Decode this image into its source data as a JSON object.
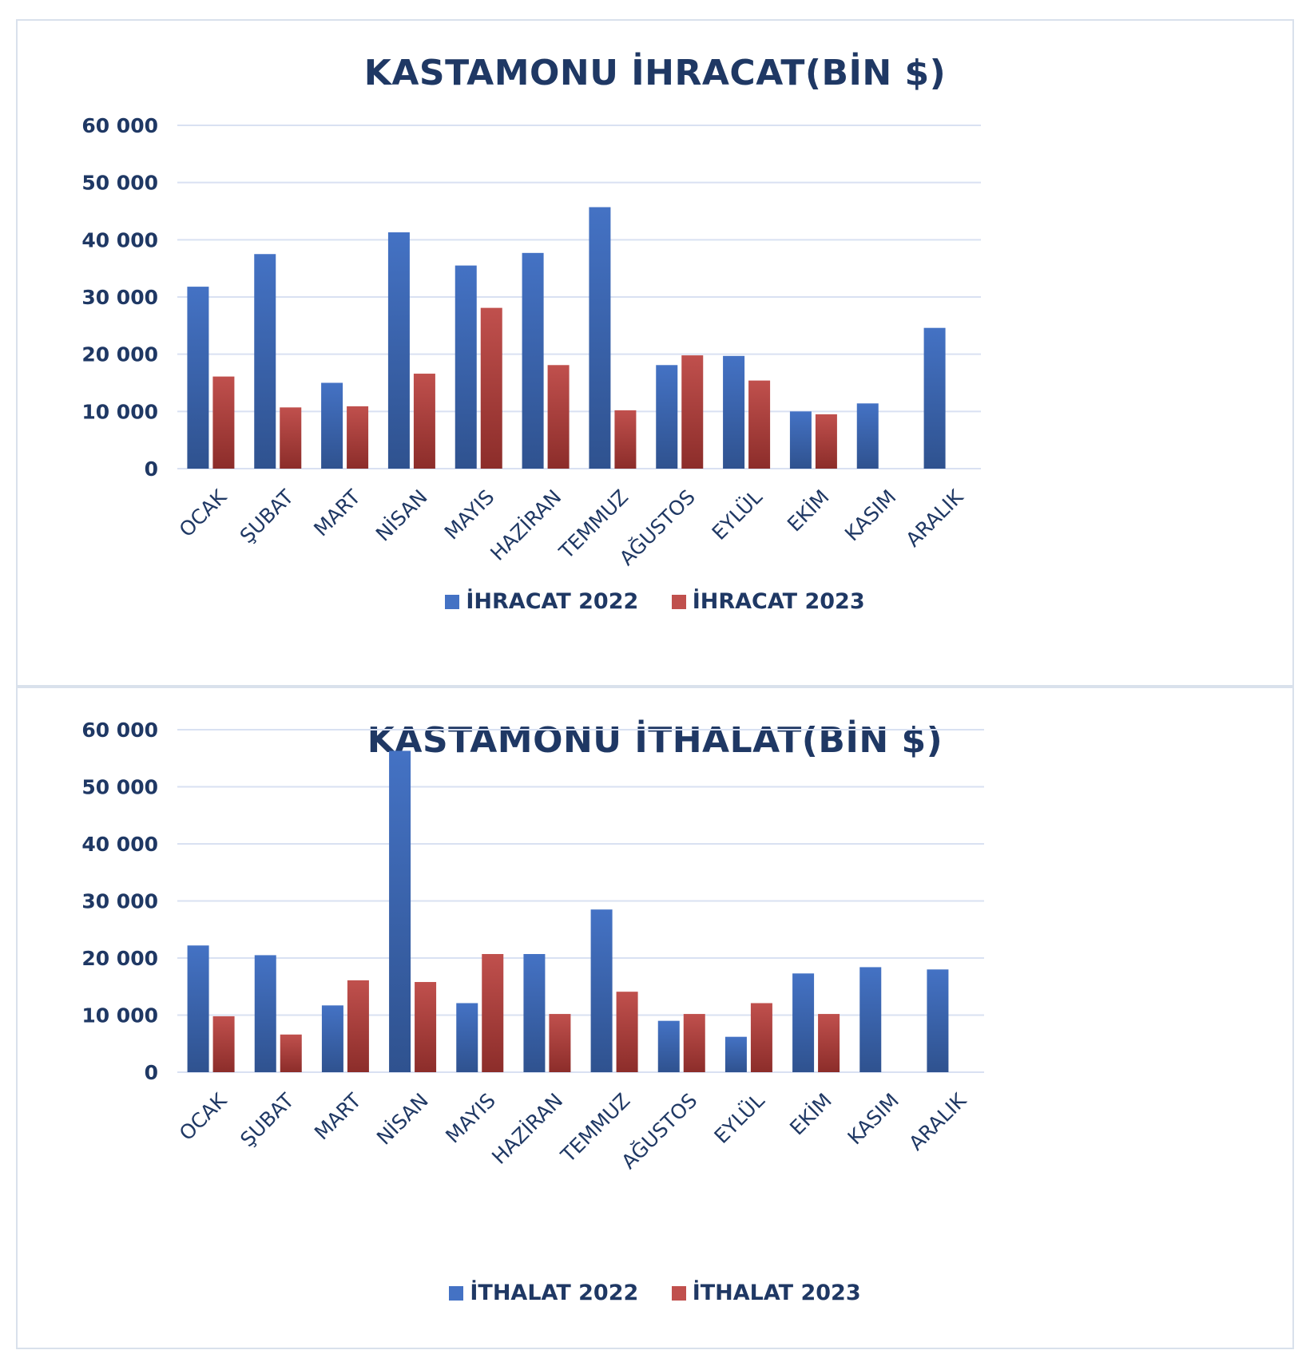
{
  "colors": {
    "series_2022": "#4472c4",
    "series_2023": "#c0504d",
    "gridline": "#d9e1f2",
    "text": "#1f3864"
  },
  "chart_data": [
    {
      "type": "bar",
      "title": "KASTAMONU İHRACAT(BİN $)",
      "categories": [
        "OCAK",
        "ŞUBAT",
        "MART",
        "NİSAN",
        "MAYIS",
        "HAZİRAN",
        "TEMMUZ",
        "AĞUSTOS",
        "EYLÜL",
        "EKİM",
        "KASIM",
        "ARALIK"
      ],
      "series": [
        {
          "name": "İHRACAT 2022",
          "values": [
            31800,
            37500,
            15000,
            41300,
            35500,
            37700,
            45700,
            18100,
            19700,
            10000,
            11400,
            24600
          ]
        },
        {
          "name": "İHRACAT 2023",
          "values": [
            16100,
            10700,
            10900,
            16600,
            28100,
            18100,
            10200,
            19800,
            15400,
            9500,
            null,
            null
          ]
        }
      ],
      "yticks": [
        "60 000",
        "50 000",
        "40 000",
        "30 000",
        "20 000",
        "10 000",
        "0"
      ],
      "ylim": [
        0,
        60000
      ],
      "grid": true,
      "legend": "bottom",
      "xlabel": "",
      "ylabel": ""
    },
    {
      "type": "bar",
      "title": "KASTAMONU İTHALAT(BİN $)",
      "categories": [
        "OCAK",
        "ŞUBAT",
        "MART",
        "NİSAN",
        "MAYIS",
        "HAZİRAN",
        "TEMMUZ",
        "AĞUSTOS",
        "EYLÜL",
        "EKİM",
        "KASIM",
        "ARALIK"
      ],
      "series": [
        {
          "name": "İTHALAT 2022",
          "values": [
            22200,
            20500,
            11700,
            56300,
            12100,
            20700,
            28500,
            9000,
            6200,
            17300,
            18400,
            18000
          ]
        },
        {
          "name": "İTHALAT 2023",
          "values": [
            9800,
            6600,
            16100,
            15800,
            20700,
            10200,
            14100,
            10200,
            12100,
            10200,
            null,
            null
          ]
        }
      ],
      "yticks": [
        "60 000",
        "50 000",
        "40 000",
        "30 000",
        "20 000",
        "10 000",
        "0"
      ],
      "ylim": [
        0,
        60000
      ],
      "grid": true,
      "legend": "bottom",
      "xlabel": "",
      "ylabel": ""
    }
  ]
}
